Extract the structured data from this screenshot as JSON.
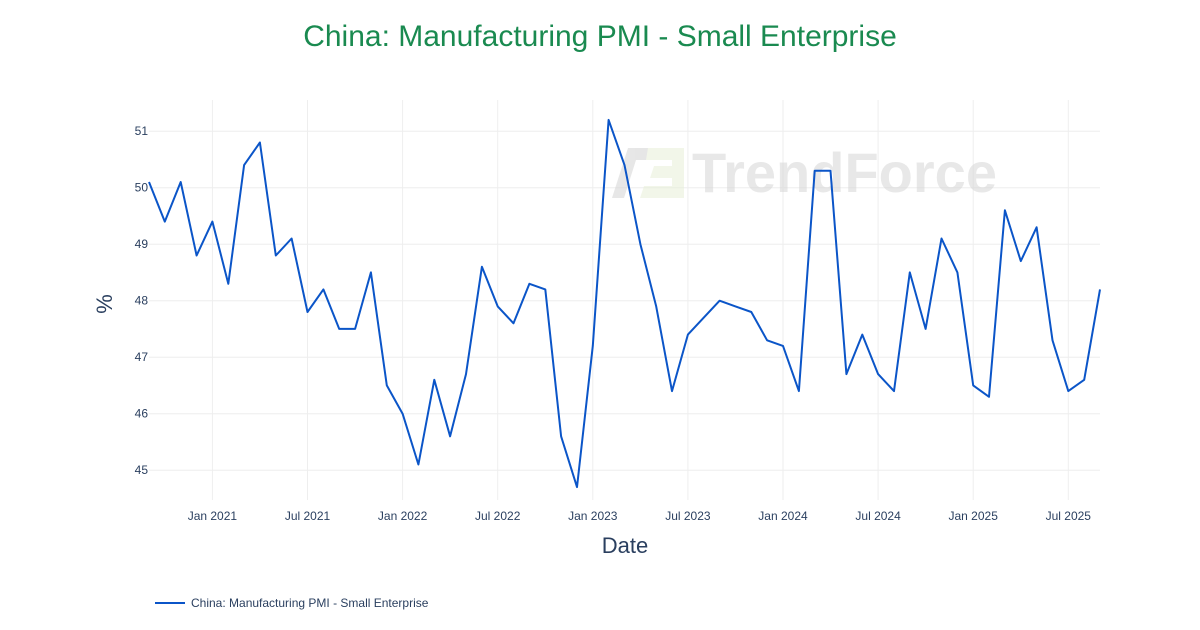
{
  "title": "China: Manufacturing PMI - Small Enterprise",
  "colors": {
    "title": "#1a8a50",
    "line": "#0b55c8",
    "axis_text": "#2a3f5f",
    "grid": "#eeeeee"
  },
  "watermark": "TrendForce",
  "legend": {
    "label": "China: Manufacturing PMI - Small Enterprise"
  },
  "axes": {
    "xlabel": "Date",
    "ylabel": "%",
    "xticks": [
      "Jan 2021",
      "Jul 2021",
      "Jan 2022",
      "Jul 2022",
      "Jan 2023",
      "Jul 2023",
      "Jan 2024",
      "Jul 2024",
      "Jan 2025",
      "Jul 2025"
    ],
    "yticks": [
      "45",
      "46",
      "47",
      "48",
      "49",
      "50",
      "51"
    ]
  },
  "chart_data": {
    "type": "line",
    "title": "China: Manufacturing PMI - Small Enterprise",
    "xlabel": "Date",
    "ylabel": "%",
    "ylim": [
      44.6,
      51.4
    ],
    "xrange": [
      "2020-09",
      "2025-09"
    ],
    "grid": true,
    "legend_position": "bottom-left",
    "x": [
      "2020-09",
      "2020-10",
      "2020-11",
      "2020-12",
      "2021-01",
      "2021-02",
      "2021-03",
      "2021-04",
      "2021-05",
      "2021-06",
      "2021-07",
      "2021-08",
      "2021-09",
      "2021-10",
      "2021-11",
      "2021-12",
      "2022-01",
      "2022-02",
      "2022-03",
      "2022-04",
      "2022-05",
      "2022-06",
      "2022-07",
      "2022-08",
      "2022-09",
      "2022-10",
      "2022-11",
      "2022-12",
      "2023-01",
      "2023-02",
      "2023-03",
      "2023-04",
      "2023-05",
      "2023-06",
      "2023-07",
      "2023-08",
      "2023-09",
      "2023-10",
      "2023-11",
      "2023-12",
      "2024-01",
      "2024-02",
      "2024-03",
      "2024-04",
      "2024-05",
      "2024-06",
      "2024-07",
      "2024-08",
      "2024-09",
      "2024-10",
      "2024-11",
      "2024-12",
      "2025-01",
      "2025-02",
      "2025-03",
      "2025-04",
      "2025-05",
      "2025-06",
      "2025-07",
      "2025-08",
      "2025-09"
    ],
    "series": [
      {
        "name": "China: Manufacturing PMI - Small Enterprise",
        "values": [
          50.1,
          49.4,
          50.1,
          48.8,
          49.4,
          48.3,
          50.4,
          50.8,
          48.8,
          49.1,
          47.8,
          48.2,
          47.5,
          47.5,
          48.5,
          46.5,
          46.0,
          45.1,
          46.6,
          45.6,
          46.7,
          48.6,
          47.9,
          47.6,
          48.3,
          48.2,
          45.6,
          44.7,
          47.2,
          51.2,
          50.4,
          49.0,
          47.9,
          46.4,
          47.4,
          47.7,
          48.0,
          47.9,
          47.8,
          47.3,
          47.2,
          46.4,
          50.3,
          50.3,
          46.7,
          47.4,
          46.7,
          46.4,
          48.5,
          47.5,
          49.1,
          48.5,
          46.5,
          46.3,
          49.6,
          48.7,
          49.3,
          47.3,
          46.4,
          46.6,
          48.2
        ]
      }
    ]
  }
}
